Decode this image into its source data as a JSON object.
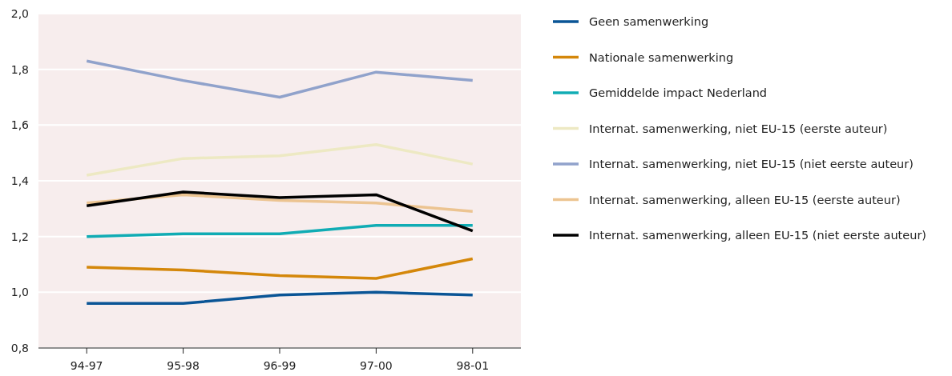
{
  "chart_data": {
    "type": "line",
    "categories": [
      "94-97",
      "95-98",
      "96-99",
      "97-00",
      "98-01"
    ],
    "ylim": [
      0.8,
      2.0
    ],
    "yticks": [
      {
        "value": 0.8,
        "label": "0,8"
      },
      {
        "value": 1.0,
        "label": "1,0"
      },
      {
        "value": 1.2,
        "label": "1,2"
      },
      {
        "value": 1.4,
        "label": "1,4"
      },
      {
        "value": 1.6,
        "label": "1,6"
      },
      {
        "value": 1.8,
        "label": "1,8"
      },
      {
        "value": 2.0,
        "label": "2,0"
      }
    ],
    "grid": "y",
    "legend": "right",
    "marker": "none",
    "line_style": "solid",
    "series": [
      {
        "name": "Geen samenwerking",
        "color": "#0a5596",
        "values": [
          0.96,
          0.96,
          0.99,
          1.0,
          0.99
        ]
      },
      {
        "name": "Nationale samenwerking",
        "color": "#d4870a",
        "values": [
          1.09,
          1.08,
          1.06,
          1.05,
          1.12
        ]
      },
      {
        "name": "Gemiddelde impact Nederland",
        "color": "#10acb4",
        "values": [
          1.2,
          1.21,
          1.21,
          1.24,
          1.24
        ]
      },
      {
        "name": "Internat. samenwerking, niet EU-15 (eerste auteur)",
        "color": "#ede9c3",
        "values": [
          1.42,
          1.48,
          1.49,
          1.53,
          1.46
        ]
      },
      {
        "name": "Internat. samenwerking, niet EU-15 (niet eerste auteur)",
        "color": "#90a2cb",
        "values": [
          1.83,
          1.76,
          1.7,
          1.79,
          1.76
        ]
      },
      {
        "name": "Internat. samenwerking, alleen EU-15 (eerste auteur)",
        "color": "#ecc491",
        "values": [
          1.32,
          1.35,
          1.33,
          1.32,
          1.29
        ]
      },
      {
        "name": "Internat. samenwerking, alleen EU-15 (niet eerste auteur)",
        "color": "#000000",
        "values": [
          1.31,
          1.36,
          1.34,
          1.35,
          1.22
        ]
      }
    ]
  }
}
